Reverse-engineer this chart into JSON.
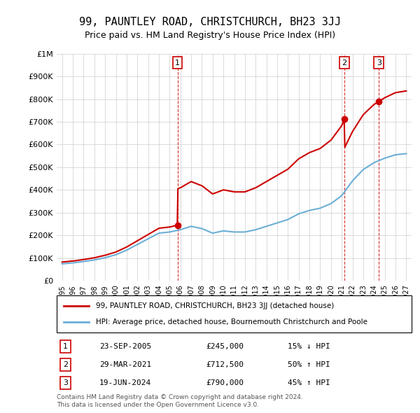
{
  "title": "99, PAUNTLEY ROAD, CHRISTCHURCH, BH23 3JJ",
  "subtitle": "Price paid vs. HM Land Registry's House Price Index (HPI)",
  "hpi_label": "HPI: Average price, detached house, Bournemouth Christchurch and Poole",
  "property_label": "99, PAUNTLEY ROAD, CHRISTCHURCH, BH23 3JJ (detached house)",
  "transactions": [
    {
      "num": 1,
      "date": "23-SEP-2005",
      "price": 245000,
      "pct": "15%",
      "dir": "↓",
      "x_year": 2005.73
    },
    {
      "num": 2,
      "date": "29-MAR-2021",
      "price": 712500,
      "pct": "50%",
      "dir": "↑",
      "x_year": 2021.25
    },
    {
      "num": 3,
      "date": "19-JUN-2024",
      "price": 790000,
      "pct": "45%",
      "dir": "↑",
      "x_year": 2024.46
    }
  ],
  "footer": "Contains HM Land Registry data © Crown copyright and database right 2024.\nThis data is licensed under the Open Government Licence v3.0.",
  "hpi_color": "#6baed6",
  "property_color": "#cc0000",
  "vline_color": "#cc0000",
  "ylim": [
    0,
    1000000
  ],
  "yticks": [
    0,
    100000,
    200000,
    300000,
    400000,
    500000,
    600000,
    700000,
    800000,
    900000,
    1000000
  ],
  "xlim_start": 1994.5,
  "xlim_end": 2027.5
}
